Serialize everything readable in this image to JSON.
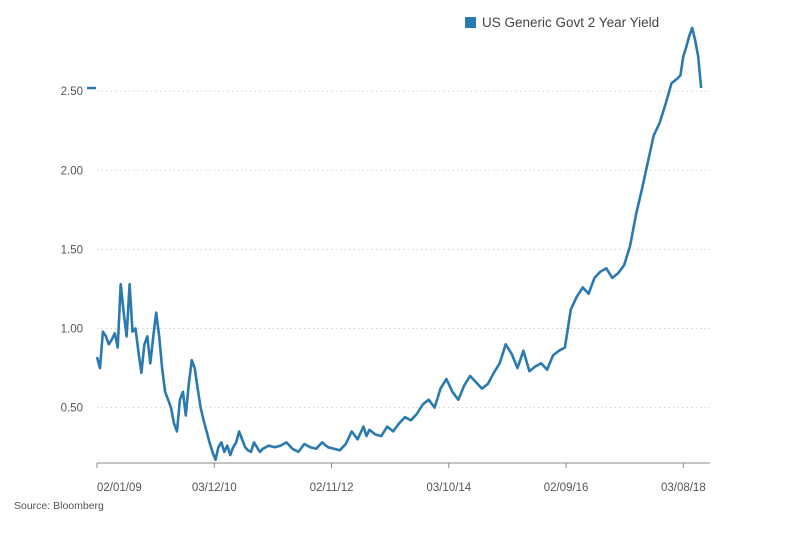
{
  "legend": {
    "label": "US Generic Govt 2 Year Yield"
  },
  "source": "Source: Bloomberg",
  "colors": {
    "line": "#2a7ab0",
    "grid": "#cfcfcf",
    "axis": "#888888",
    "text": "#555555"
  },
  "chart_data": {
    "type": "line",
    "title": "",
    "xlabel": "",
    "ylabel": "",
    "ylim": [
      0.15,
      2.95
    ],
    "yticks": [
      "0.50",
      "1.00",
      "1.50",
      "2.00",
      "2.50"
    ],
    "yvalues": [
      0.5,
      1.0,
      1.5,
      2.0,
      2.5
    ],
    "xticks": [
      "02/01/09",
      "03/12/10",
      "02/11/12",
      "03/10/14",
      "02/09/16",
      "03/08/18"
    ],
    "xlim": [
      2009.0,
      2019.35
    ],
    "xtick_values": [
      2009.0,
      2010.98,
      2012.96,
      2014.94,
      2016.92,
      2018.9
    ],
    "grid": "horizontal-dotted",
    "legend_position": "top-right",
    "last_value": 2.52,
    "series": [
      {
        "name": "US Generic Govt 2 Year Yield",
        "x": [
          2009.0,
          2009.05,
          2009.1,
          2009.15,
          2009.2,
          2009.25,
          2009.3,
          2009.35,
          2009.4,
          2009.45,
          2009.5,
          2009.55,
          2009.6,
          2009.65,
          2009.7,
          2009.75,
          2009.8,
          2009.85,
          2009.9,
          2009.95,
          2010.0,
          2010.05,
          2010.1,
          2010.15,
          2010.2,
          2010.25,
          2010.3,
          2010.35,
          2010.4,
          2010.45,
          2010.5,
          2010.55,
          2010.6,
          2010.65,
          2010.7,
          2010.75,
          2010.8,
          2010.85,
          2010.9,
          2010.95,
          2011.0,
          2011.05,
          2011.1,
          2011.15,
          2011.2,
          2011.25,
          2011.3,
          2011.35,
          2011.4,
          2011.45,
          2011.5,
          2011.55,
          2011.6,
          2011.65,
          2011.7,
          2011.75,
          2011.8,
          2011.9,
          2012.0,
          2012.1,
          2012.2,
          2012.3,
          2012.4,
          2012.5,
          2012.6,
          2012.7,
          2012.8,
          2012.9,
          2013.0,
          2013.1,
          2013.2,
          2013.3,
          2013.4,
          2013.5,
          2013.55,
          2013.6,
          2013.7,
          2013.8,
          2013.9,
          2014.0,
          2014.1,
          2014.2,
          2014.3,
          2014.4,
          2014.5,
          2014.6,
          2014.7,
          2014.8,
          2014.9,
          2015.0,
          2015.1,
          2015.2,
          2015.3,
          2015.4,
          2015.5,
          2015.6,
          2015.7,
          2015.8,
          2015.9,
          2016.0,
          2016.1,
          2016.2,
          2016.3,
          2016.4,
          2016.5,
          2016.6,
          2016.7,
          2016.8,
          2016.9,
          2017.0,
          2017.1,
          2017.2,
          2017.3,
          2017.4,
          2017.5,
          2017.6,
          2017.7,
          2017.8,
          2017.9,
          2018.0,
          2018.1,
          2018.2,
          2018.3,
          2018.4,
          2018.5,
          2018.6,
          2018.7,
          2018.8,
          2018.85,
          2018.9,
          2018.95,
          2019.0,
          2019.05,
          2019.1,
          2019.15,
          2019.2
        ],
        "values": [
          0.82,
          0.75,
          0.98,
          0.95,
          0.9,
          0.93,
          0.97,
          0.88,
          1.28,
          1.1,
          0.95,
          1.28,
          0.98,
          1.0,
          0.85,
          0.72,
          0.9,
          0.95,
          0.78,
          0.95,
          1.1,
          0.95,
          0.75,
          0.6,
          0.55,
          0.5,
          0.4,
          0.35,
          0.55,
          0.6,
          0.45,
          0.65,
          0.8,
          0.75,
          0.62,
          0.5,
          0.42,
          0.35,
          0.28,
          0.22,
          0.17,
          0.25,
          0.28,
          0.22,
          0.26,
          0.2,
          0.25,
          0.28,
          0.35,
          0.3,
          0.25,
          0.23,
          0.22,
          0.28,
          0.25,
          0.22,
          0.24,
          0.26,
          0.25,
          0.26,
          0.28,
          0.24,
          0.22,
          0.27,
          0.25,
          0.24,
          0.28,
          0.25,
          0.24,
          0.23,
          0.27,
          0.35,
          0.3,
          0.38,
          0.32,
          0.36,
          0.33,
          0.32,
          0.38,
          0.35,
          0.4,
          0.44,
          0.42,
          0.46,
          0.52,
          0.55,
          0.5,
          0.62,
          0.68,
          0.6,
          0.55,
          0.64,
          0.7,
          0.66,
          0.62,
          0.65,
          0.72,
          0.78,
          0.9,
          0.84,
          0.75,
          0.86,
          0.73,
          0.76,
          0.78,
          0.74,
          0.83,
          0.86,
          0.88,
          1.12,
          1.2,
          1.26,
          1.22,
          1.32,
          1.36,
          1.38,
          1.32,
          1.35,
          1.4,
          1.52,
          1.72,
          1.88,
          2.05,
          2.22,
          2.3,
          2.42,
          2.55,
          2.58,
          2.6,
          2.72,
          2.78,
          2.85,
          2.9,
          2.82,
          2.72,
          2.52
        ]
      }
    ]
  }
}
